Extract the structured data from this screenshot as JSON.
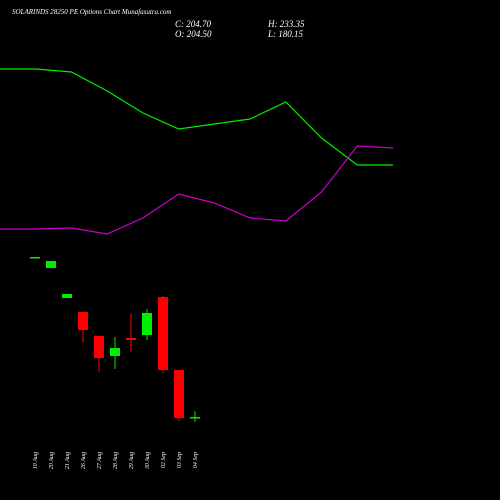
{
  "chart_data": [
    {
      "type": "candlestick",
      "title": "SOLARINDS 28250 PE Options Chart Munafasutra.com",
      "summary": [
        {
          "value": 204.7,
          "label": "C: 204.70"
        },
        {
          "value": 204.5,
          "label": "O: 204.50"
        },
        {
          "value": 233.35,
          "label": "H: 233.35"
        },
        {
          "value": 180.15,
          "label": "L: 180.15"
        }
      ],
      "categories": [
        "19 Aug",
        "20 Aug",
        "21 Aug",
        "26 Aug",
        "27 Aug",
        "28 Aug",
        "29 Aug",
        "30 Aug",
        "02 Sep",
        "03 Sep",
        "04 Sep"
      ],
      "open": [
        1000,
        950,
        800,
        730,
        610,
        510,
        600,
        615,
        805,
        440,
        204.5
      ],
      "high": [
        1005,
        985,
        820,
        730,
        610,
        605,
        725,
        745,
        810,
        440,
        233.35
      ],
      "low": [
        1000,
        950,
        800,
        575,
        430,
        445,
        530,
        590,
        425,
        185,
        180.15
      ],
      "close": [
        1005,
        985,
        820,
        640,
        500,
        550,
        590,
        725,
        440,
        200,
        204.7
      ],
      "up_color": "#00ee00",
      "down_color": "#ff0000",
      "ylim": [
        150,
        1050
      ]
    },
    {
      "type": "line",
      "x": [
        0,
        1,
        2,
        3,
        4,
        5,
        6,
        7,
        8,
        9,
        10,
        11
      ],
      "xlim": [
        0,
        11
      ],
      "ylim": [
        0,
        100
      ],
      "series": [
        {
          "color": "#00ee00",
          "values": [
            90.5,
            90.5,
            89,
            79.5,
            68.5,
            60.5,
            63,
            65.5,
            74,
            56,
            42.5,
            42.5
          ]
        },
        {
          "color": "#cc00cc",
          "values": [
            10.5,
            10.5,
            11,
            8,
            16,
            28,
            23.5,
            16,
            14.5,
            29,
            52,
            51
          ]
        }
      ]
    }
  ]
}
